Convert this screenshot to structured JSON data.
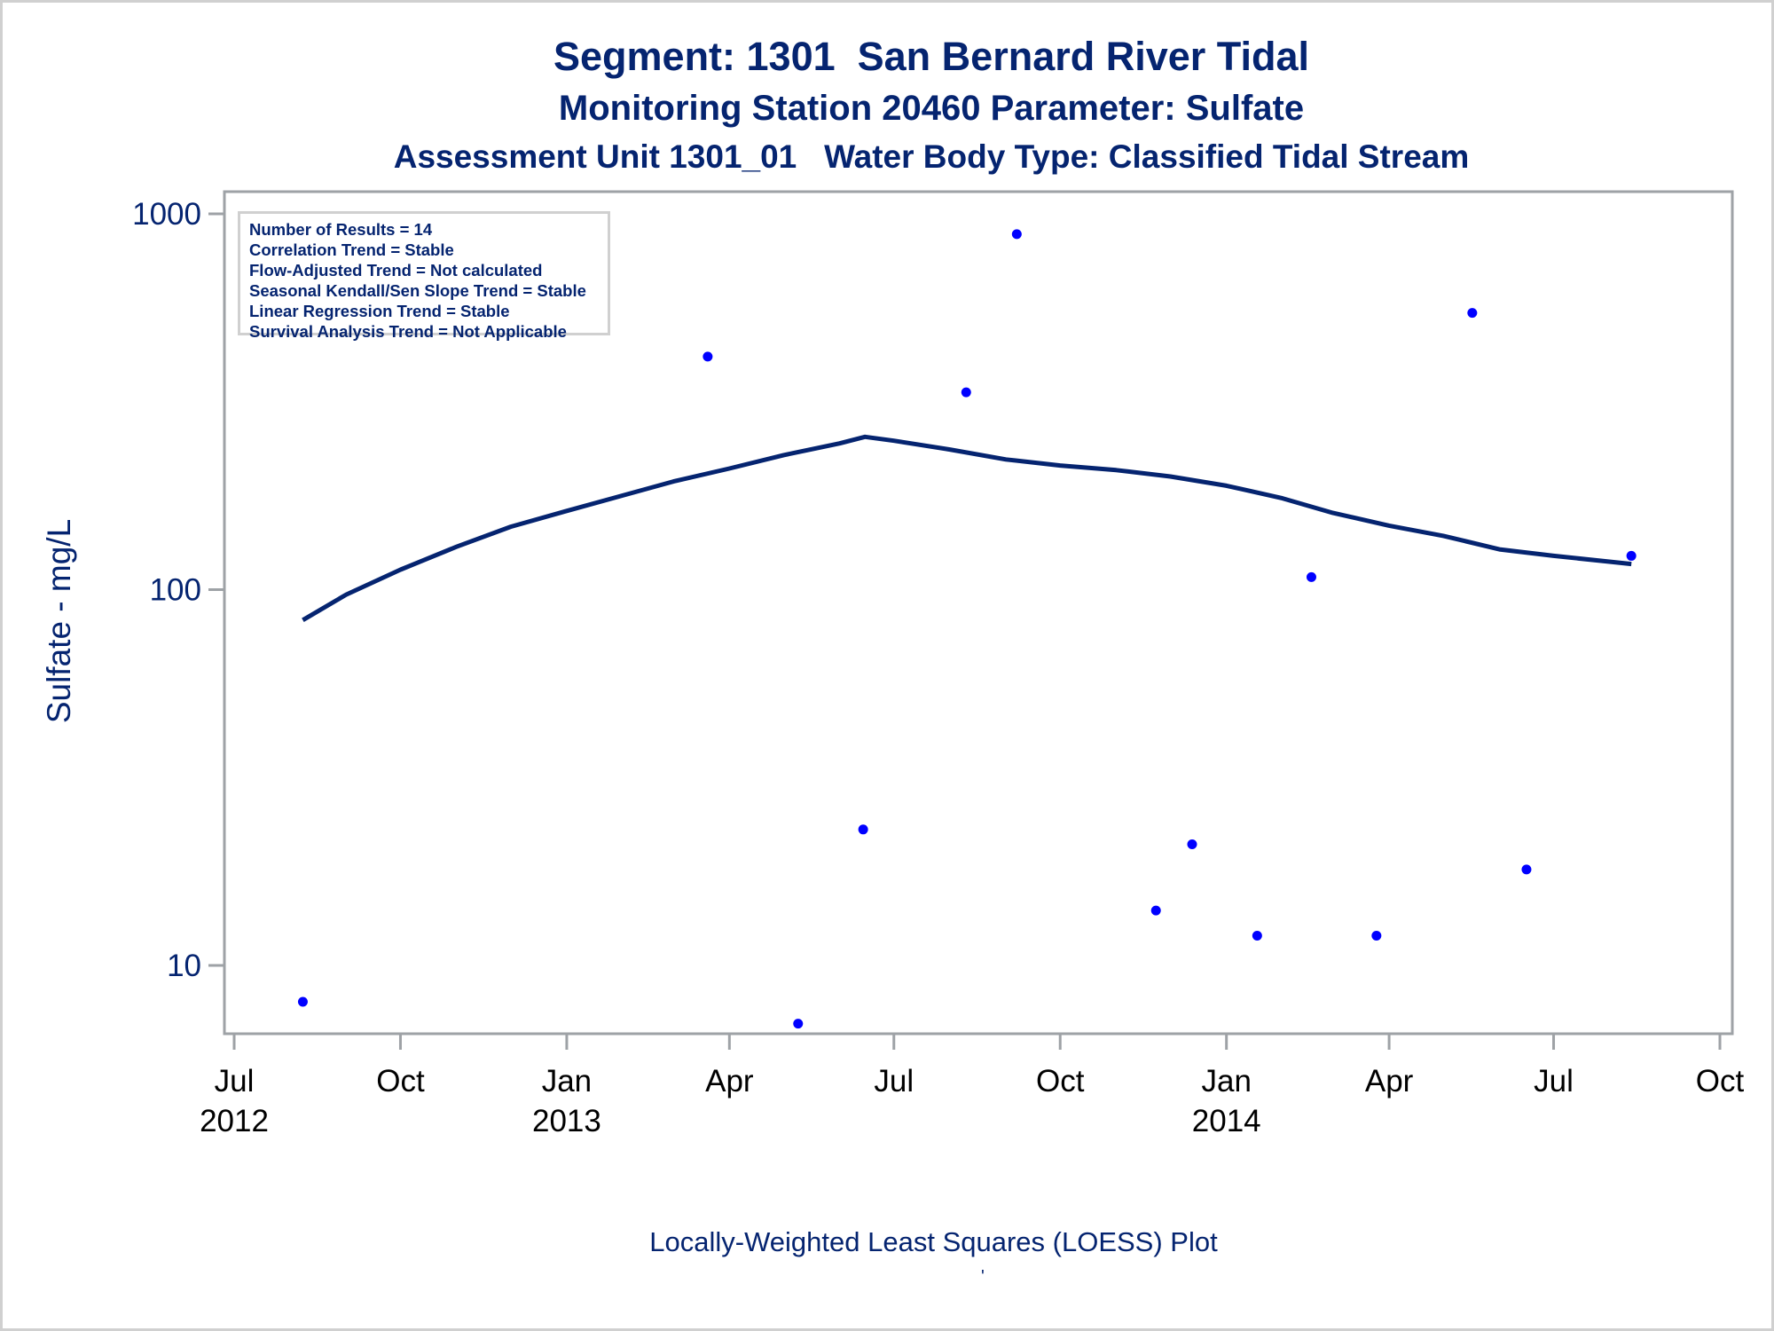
{
  "titles": {
    "line1": "Segment: 1301  San Bernard River Tidal",
    "line2": "Monitoring Station 20460 Parameter: Sulfate",
    "line3": "Assessment Unit 1301_01   Water Body Type: Classified Tidal Stream"
  },
  "stats_box": [
    "Number of Results = 14",
    "Correlation Trend = Stable",
    "Flow-Adjusted Trend = Not calculated",
    "Seasonal Kendall/Sen Slope Trend = Stable",
    "Linear Regression Trend = Stable",
    "Survival Analysis Trend = Not Applicable"
  ],
  "footnote": "Locally-Weighted Least Squares (LOESS) Plot",
  "footnote_mark": "'",
  "colors": {
    "title": "#052470",
    "points": "#0000ff",
    "loess": "#052470",
    "axis": "#9ea2a6",
    "border": "#d0d0d0"
  },
  "chart_data": {
    "type": "scatter",
    "title": "Segment: 1301  San Bernard River Tidal",
    "subtitle": [
      "Monitoring Station 20460 Parameter: Sulfate",
      "Assessment Unit 1301_01   Water Body Type: Classified Tidal Stream"
    ],
    "xlabel": "",
    "ylabel": "Sulfate - mg/L",
    "yscale": "log",
    "ylim": [
      7,
      1000
    ],
    "xlim": [
      "2012-06-25",
      "2014-10-08"
    ],
    "yticks": [
      10,
      100,
      1000
    ],
    "ytick_labels": [
      "10",
      "100",
      "1000"
    ],
    "xticks": [
      {
        "date": "2012-07-01",
        "month": "Jul",
        "year": "2012"
      },
      {
        "date": "2012-10-01",
        "month": "Oct",
        "year": ""
      },
      {
        "date": "2013-01-01",
        "month": "Jan",
        "year": "2013"
      },
      {
        "date": "2013-04-01",
        "month": "Apr",
        "year": ""
      },
      {
        "date": "2013-07-01",
        "month": "Jul",
        "year": ""
      },
      {
        "date": "2013-10-01",
        "month": "Oct",
        "year": ""
      },
      {
        "date": "2014-01-01",
        "month": "Jan",
        "year": "2014"
      },
      {
        "date": "2014-04-01",
        "month": "Apr",
        "year": ""
      },
      {
        "date": "2014-07-01",
        "month": "Jul",
        "year": ""
      },
      {
        "date": "2014-10-01",
        "month": "Oct",
        "year": ""
      }
    ],
    "grid": false,
    "series": [
      {
        "name": "Sulfate results",
        "type": "scatter",
        "points": [
          {
            "date": "2012-08-08",
            "value": 8
          },
          {
            "date": "2013-03-20",
            "value": 417
          },
          {
            "date": "2013-05-09",
            "value": 7
          },
          {
            "date": "2013-06-14",
            "value": 23
          },
          {
            "date": "2013-08-10",
            "value": 335
          },
          {
            "date": "2013-09-07",
            "value": 883
          },
          {
            "date": "2013-11-23",
            "value": 14
          },
          {
            "date": "2013-12-13",
            "value": 21
          },
          {
            "date": "2014-01-18",
            "value": 12
          },
          {
            "date": "2014-02-17",
            "value": 108
          },
          {
            "date": "2014-03-25",
            "value": 12
          },
          {
            "date": "2014-05-17",
            "value": 545
          },
          {
            "date": "2014-06-16",
            "value": 18
          },
          {
            "date": "2014-08-13",
            "value": 123
          }
        ]
      },
      {
        "name": "LOESS fit",
        "type": "line",
        "points": [
          {
            "date": "2012-08-08",
            "value": 83
          },
          {
            "date": "2012-09-01",
            "value": 97
          },
          {
            "date": "2012-10-01",
            "value": 113
          },
          {
            "date": "2012-11-01",
            "value": 130
          },
          {
            "date": "2012-12-01",
            "value": 147
          },
          {
            "date": "2013-01-01",
            "value": 162
          },
          {
            "date": "2013-02-01",
            "value": 178
          },
          {
            "date": "2013-03-01",
            "value": 194
          },
          {
            "date": "2013-04-01",
            "value": 210
          },
          {
            "date": "2013-05-01",
            "value": 228
          },
          {
            "date": "2013-06-01",
            "value": 245
          },
          {
            "date": "2013-06-15",
            "value": 255
          },
          {
            "date": "2013-07-01",
            "value": 249
          },
          {
            "date": "2013-08-01",
            "value": 236
          },
          {
            "date": "2013-09-01",
            "value": 222
          },
          {
            "date": "2013-10-01",
            "value": 214
          },
          {
            "date": "2013-11-01",
            "value": 208
          },
          {
            "date": "2013-12-01",
            "value": 200
          },
          {
            "date": "2014-01-01",
            "value": 189
          },
          {
            "date": "2014-02-01",
            "value": 175
          },
          {
            "date": "2014-03-01",
            "value": 160
          },
          {
            "date": "2014-04-01",
            "value": 148
          },
          {
            "date": "2014-05-01",
            "value": 139
          },
          {
            "date": "2014-06-01",
            "value": 128
          },
          {
            "date": "2014-07-01",
            "value": 123
          },
          {
            "date": "2014-08-13",
            "value": 117
          }
        ]
      }
    ],
    "legend": "none",
    "annotation_box": "top-left"
  }
}
